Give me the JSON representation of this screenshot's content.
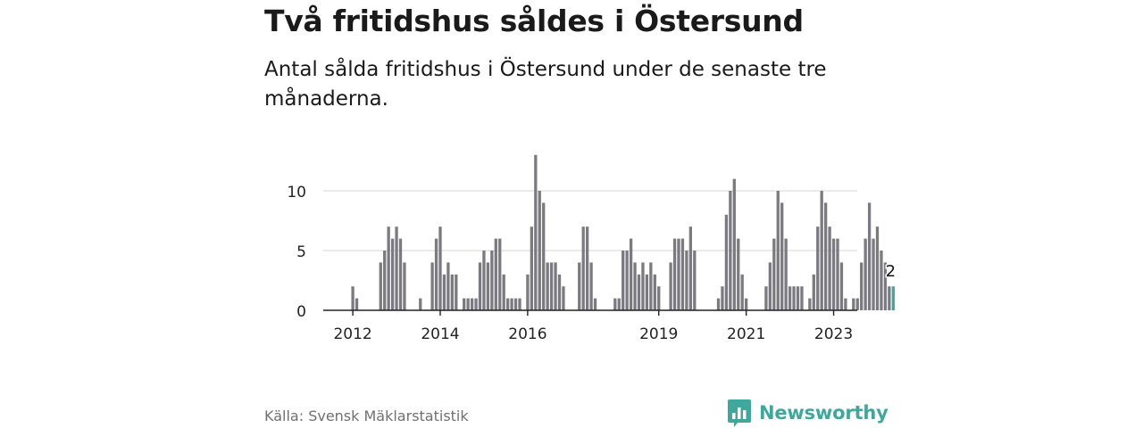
{
  "header": {
    "title": "Två fritidshus såldes i Östersund",
    "subtitle": "Antal sålda fritidshus i Östersund under de senaste tre månaderna."
  },
  "footer": {
    "source": "Källa: Svensk Mäklarstatistik",
    "brand": "Newsworthy"
  },
  "colors": {
    "bar": "#7a7a80",
    "highlight": "#3ea89c",
    "grid": "#dddddd",
    "axis": "#222222",
    "brand": "#3ea89c"
  },
  "chart_data": {
    "type": "bar",
    "title": "Två fritidshus såldes i Östersund",
    "subtitle": "Antal sålda fritidshus i Östersund under de senaste tre månaderna.",
    "ylim": [
      0,
      13
    ],
    "yticks": [
      0,
      5,
      10
    ],
    "grid": true,
    "x_start_index": 0,
    "xticks": [
      {
        "label": "2012",
        "index": 2
      },
      {
        "label": "2014",
        "index": 24
      },
      {
        "label": "2016",
        "index": 46
      },
      {
        "label": "2019",
        "index": 79
      },
      {
        "label": "2021",
        "index": 101
      },
      {
        "label": "2023",
        "index": 123
      }
    ],
    "values": [
      0,
      0,
      2,
      1,
      0,
      0,
      0,
      0,
      0,
      4,
      5,
      7,
      6,
      7,
      6,
      4,
      0,
      0,
      0,
      1,
      0,
      0,
      4,
      6,
      7,
      3,
      4,
      3,
      3,
      0,
      1,
      1,
      1,
      1,
      4,
      5,
      4,
      5,
      6,
      6,
      3,
      1,
      1,
      1,
      1,
      0,
      3,
      7,
      13,
      10,
      9,
      4,
      4,
      4,
      3,
      2,
      0,
      0,
      0,
      4,
      7,
      7,
      4,
      1,
      0,
      0,
      0,
      0,
      1,
      1,
      5,
      5,
      6,
      4,
      3,
      4,
      3,
      4,
      3,
      2,
      0,
      0,
      4,
      6,
      6,
      6,
      5,
      7,
      5,
      0,
      0,
      0,
      0,
      0,
      1,
      2,
      8,
      10,
      11,
      6,
      3,
      1,
      0,
      0,
      0,
      0,
      2,
      4,
      6,
      10,
      9,
      6,
      2,
      2,
      2,
      2,
      0,
      1,
      3,
      7,
      10,
      9,
      7,
      6,
      6,
      4,
      1,
      0,
      1,
      1,
      4,
      6,
      9,
      6,
      7,
      5,
      4,
      2,
      2
    ],
    "highlight_index": 138,
    "highlight_label": "2"
  }
}
